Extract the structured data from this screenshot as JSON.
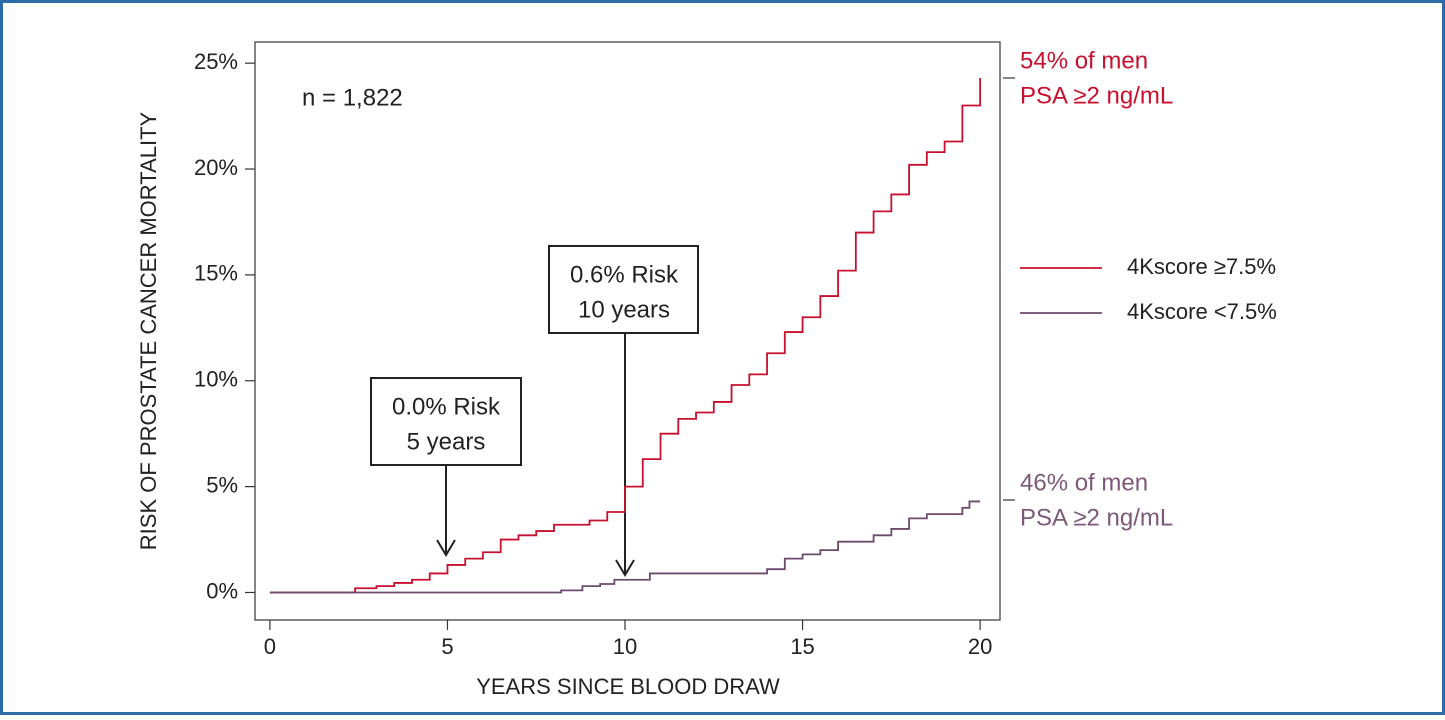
{
  "chart_data": {
    "type": "step",
    "ylabel": "RISK OF PROSTATE CANCER MORTALITY",
    "xlabel": "YEARS SINCE BLOOD DRAW",
    "xlim": [
      -0.42,
      20.56
    ],
    "ylim": [
      -1.3,
      26
    ],
    "xticks": [
      0,
      5,
      10,
      15,
      20
    ],
    "yticks": [
      {
        "value": 0,
        "label": "0%"
      },
      {
        "value": 5,
        "label": "5%"
      },
      {
        "value": 10,
        "label": "10%"
      },
      {
        "value": 15,
        "label": "15%"
      },
      {
        "value": 20,
        "label": "20%"
      },
      {
        "value": 25,
        "label": "25%"
      }
    ],
    "series": [
      {
        "name": "4Kscore ≥7.5%",
        "color": "#c8102e",
        "x": [
          0,
          2.4,
          3,
          3.5,
          4,
          4.5,
          5,
          5.5,
          6,
          6.5,
          7,
          7.5,
          8,
          9,
          9.5,
          10,
          10.5,
          11,
          11.5,
          12,
          12.5,
          13,
          13.5,
          14,
          14.5,
          15,
          15.5,
          16,
          16.5,
          17,
          17.5,
          18,
          18.5,
          19,
          19.5,
          20
        ],
        "values": [
          0,
          0.2,
          0.3,
          0.45,
          0.6,
          0.9,
          1.3,
          1.6,
          1.9,
          2.5,
          2.7,
          2.9,
          3.2,
          3.4,
          3.8,
          5.0,
          6.3,
          7.5,
          8.2,
          8.5,
          9.0,
          9.8,
          10.3,
          11.3,
          12.3,
          13.0,
          14.0,
          15.2,
          17.0,
          18.0,
          18.8,
          20.2,
          20.8,
          21.3,
          23.0,
          24.3
        ]
      },
      {
        "name": "4Kscore <7.5%",
        "color": "#6e4a6c",
        "x": [
          0,
          8.2,
          8.8,
          9.3,
          9.7,
          10.7,
          13,
          14,
          14.5,
          15,
          15.5,
          16,
          17,
          17.5,
          18,
          18.5,
          19.5,
          19.7,
          20
        ],
        "values": [
          0,
          0.1,
          0.3,
          0.4,
          0.6,
          0.9,
          0.9,
          1.1,
          1.6,
          1.8,
          2.0,
          2.4,
          2.7,
          3.0,
          3.5,
          3.7,
          4.0,
          4.3,
          4.3
        ]
      }
    ],
    "annotations": [
      "n = 1,822",
      "0.0% Risk",
      "5 years",
      "0.6% Risk",
      "10 years",
      "54% of men",
      "PSA ≥2 ng/mL",
      "46% of men",
      "PSA ≥2 ng/mL"
    ]
  }
}
